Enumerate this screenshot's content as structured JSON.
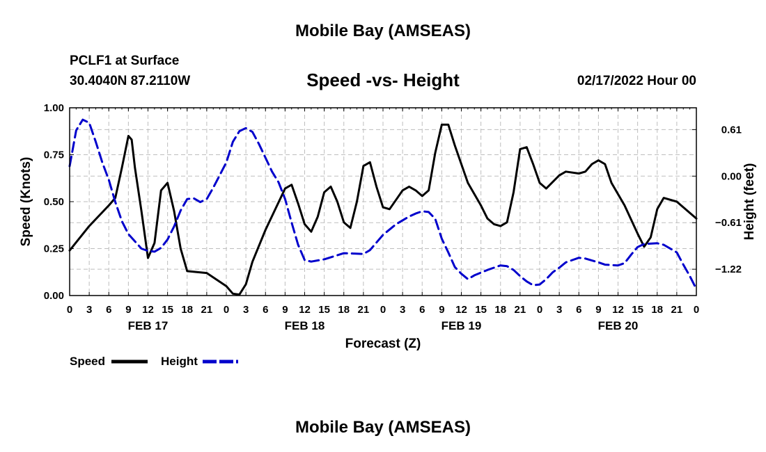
{
  "header": {
    "title": "Mobile Bay (AMSEAS)",
    "station": "PCLF1 at Surface",
    "location": "30.4040N  87.2110W",
    "datetime": "02/17/2022 Hour 00",
    "bottom_title": "Mobile Bay (AMSEAS)"
  },
  "colors": {
    "speed": "#000000",
    "height": "#0000cc",
    "grid": "#bdbdbd"
  },
  "chart_data": {
    "type": "line",
    "title": "Speed -vs- Height",
    "xlabel": "Forecast (Z)",
    "ylabel": "Speed (Knots)",
    "y2label": "Height (feet)",
    "xlim": [
      0,
      96
    ],
    "ylim": [
      0,
      1
    ],
    "y2lim": [
      -1.565,
      0.896
    ],
    "x_ticks": [
      0,
      3,
      6,
      9,
      12,
      15,
      18,
      21,
      24,
      27,
      30,
      33,
      36,
      39,
      42,
      45,
      48,
      51,
      54,
      57,
      60,
      63,
      66,
      69,
      72,
      75,
      78,
      81,
      84,
      87,
      90,
      93,
      96
    ],
    "x_tick_labels": [
      "0",
      "3",
      "6",
      "9",
      "12",
      "15",
      "18",
      "21",
      "0",
      "3",
      "6",
      "9",
      "12",
      "15",
      "18",
      "21",
      "0",
      "3",
      "6",
      "9",
      "12",
      "15",
      "18",
      "21",
      "0",
      "3",
      "6",
      "9",
      "12",
      "15",
      "18",
      "21",
      "0"
    ],
    "y_ticks": [
      0,
      0.25,
      0.5,
      0.75,
      1.0
    ],
    "y_tick_labels": [
      "0.00",
      "0.25",
      "0.50",
      "0.75",
      "1.00"
    ],
    "y2_ticks": [
      0.61,
      0.0,
      -0.61,
      -1.22
    ],
    "y2_tick_labels": [
      "0.61",
      "0.00",
      "−0.61",
      "−1.22"
    ],
    "dates": [
      {
        "label": "FEB 17",
        "x": 12
      },
      {
        "label": "FEB 18",
        "x": 36
      },
      {
        "label": "FEB 19",
        "x": 60
      },
      {
        "label": "FEB 20",
        "x": 84
      }
    ],
    "series": [
      {
        "name": "Speed",
        "axis": "left",
        "style": "solid",
        "points": [
          [
            0,
            0.24
          ],
          [
            3,
            0.37
          ],
          [
            6,
            0.48
          ],
          [
            7,
            0.52
          ],
          [
            8,
            0.68
          ],
          [
            9,
            0.85
          ],
          [
            9.5,
            0.83
          ],
          [
            10,
            0.68
          ],
          [
            11,
            0.45
          ],
          [
            12,
            0.2
          ],
          [
            13,
            0.28
          ],
          [
            14,
            0.56
          ],
          [
            15,
            0.6
          ],
          [
            16,
            0.45
          ],
          [
            17,
            0.25
          ],
          [
            18,
            0.13
          ],
          [
            21,
            0.12
          ],
          [
            24,
            0.05
          ],
          [
            25,
            0.01
          ],
          [
            26,
            0.005
          ],
          [
            27,
            0.06
          ],
          [
            28,
            0.18
          ],
          [
            30,
            0.35
          ],
          [
            33,
            0.57
          ],
          [
            34,
            0.59
          ],
          [
            35,
            0.49
          ],
          [
            36,
            0.38
          ],
          [
            37,
            0.34
          ],
          [
            38,
            0.42
          ],
          [
            39,
            0.55
          ],
          [
            40,
            0.58
          ],
          [
            41,
            0.5
          ],
          [
            42,
            0.39
          ],
          [
            43,
            0.36
          ],
          [
            44,
            0.5
          ],
          [
            45,
            0.69
          ],
          [
            46,
            0.71
          ],
          [
            47,
            0.58
          ],
          [
            48,
            0.47
          ],
          [
            49,
            0.46
          ],
          [
            50,
            0.51
          ],
          [
            51,
            0.56
          ],
          [
            52,
            0.58
          ],
          [
            53,
            0.56
          ],
          [
            54,
            0.53
          ],
          [
            55,
            0.56
          ],
          [
            56,
            0.76
          ],
          [
            57,
            0.91
          ],
          [
            58,
            0.91
          ],
          [
            59,
            0.8
          ],
          [
            60,
            0.7
          ],
          [
            61,
            0.6
          ],
          [
            63,
            0.48
          ],
          [
            64,
            0.41
          ],
          [
            65,
            0.38
          ],
          [
            66,
            0.37
          ],
          [
            67,
            0.39
          ],
          [
            68,
            0.55
          ],
          [
            69,
            0.78
          ],
          [
            70,
            0.79
          ],
          [
            71,
            0.7
          ],
          [
            72,
            0.6
          ],
          [
            73,
            0.57
          ],
          [
            75,
            0.64
          ],
          [
            76,
            0.66
          ],
          [
            78,
            0.65
          ],
          [
            79,
            0.66
          ],
          [
            80,
            0.7
          ],
          [
            81,
            0.72
          ],
          [
            82,
            0.7
          ],
          [
            83,
            0.6
          ],
          [
            85,
            0.48
          ],
          [
            87,
            0.33
          ],
          [
            88,
            0.26
          ],
          [
            89,
            0.31
          ],
          [
            90,
            0.46
          ],
          [
            91,
            0.52
          ],
          [
            93,
            0.5
          ],
          [
            96,
            0.41
          ]
        ]
      },
      {
        "name": "Height",
        "axis": "right",
        "style": "dashed",
        "points": [
          [
            0,
            0.13
          ],
          [
            1,
            0.6
          ],
          [
            2,
            0.74
          ],
          [
            3,
            0.7
          ],
          [
            4,
            0.45
          ],
          [
            5,
            0.18
          ],
          [
            6,
            -0.05
          ],
          [
            7,
            -0.34
          ],
          [
            8,
            -0.59
          ],
          [
            9,
            -0.76
          ],
          [
            11,
            -0.95
          ],
          [
            12,
            -0.98
          ],
          [
            13,
            -0.99
          ],
          [
            14,
            -0.94
          ],
          [
            15,
            -0.83
          ],
          [
            16,
            -0.66
          ],
          [
            17,
            -0.45
          ],
          [
            18,
            -0.3
          ],
          [
            19,
            -0.29
          ],
          [
            20,
            -0.34
          ],
          [
            21,
            -0.3
          ],
          [
            22,
            -0.15
          ],
          [
            24,
            0.18
          ],
          [
            25,
            0.45
          ],
          [
            26,
            0.59
          ],
          [
            27,
            0.63
          ],
          [
            28,
            0.58
          ],
          [
            29,
            0.42
          ],
          [
            30,
            0.24
          ],
          [
            31,
            0.06
          ],
          [
            32,
            -0.08
          ],
          [
            33,
            -0.3
          ],
          [
            34,
            -0.61
          ],
          [
            35,
            -0.9
          ],
          [
            36,
            -1.1
          ],
          [
            37,
            -1.12
          ],
          [
            39,
            -1.09
          ],
          [
            42,
            -1.01
          ],
          [
            45,
            -1.02
          ],
          [
            46,
            -0.97
          ],
          [
            48,
            -0.77
          ],
          [
            50,
            -0.63
          ],
          [
            52,
            -0.53
          ],
          [
            53,
            -0.49
          ],
          [
            54,
            -0.46
          ],
          [
            55,
            -0.47
          ],
          [
            56,
            -0.56
          ],
          [
            57,
            -0.82
          ],
          [
            58,
            -1.0
          ],
          [
            59,
            -1.19
          ],
          [
            60,
            -1.28
          ],
          [
            61,
            -1.35
          ],
          [
            62,
            -1.3
          ],
          [
            64,
            -1.23
          ],
          [
            66,
            -1.17
          ],
          [
            67,
            -1.18
          ],
          [
            68,
            -1.23
          ],
          [
            69,
            -1.31
          ],
          [
            70,
            -1.38
          ],
          [
            71,
            -1.43
          ],
          [
            72,
            -1.42
          ],
          [
            73,
            -1.35
          ],
          [
            74,
            -1.26
          ],
          [
            75,
            -1.2
          ],
          [
            76,
            -1.13
          ],
          [
            78,
            -1.07
          ],
          [
            79,
            -1.08
          ],
          [
            81,
            -1.13
          ],
          [
            82,
            -1.16
          ],
          [
            84,
            -1.17
          ],
          [
            85,
            -1.14
          ],
          [
            86,
            -1.03
          ],
          [
            87,
            -0.93
          ],
          [
            88,
            -0.89
          ],
          [
            90,
            -0.88
          ],
          [
            91,
            -0.9
          ],
          [
            93,
            -1.0
          ],
          [
            94,
            -1.16
          ],
          [
            95,
            -1.31
          ],
          [
            96,
            -1.48
          ]
        ]
      }
    ],
    "legend": [
      {
        "label": "Speed",
        "style": "solid"
      },
      {
        "label": "Height",
        "style": "dashed"
      }
    ],
    "legend_position": "bottom-left",
    "grid": true
  }
}
